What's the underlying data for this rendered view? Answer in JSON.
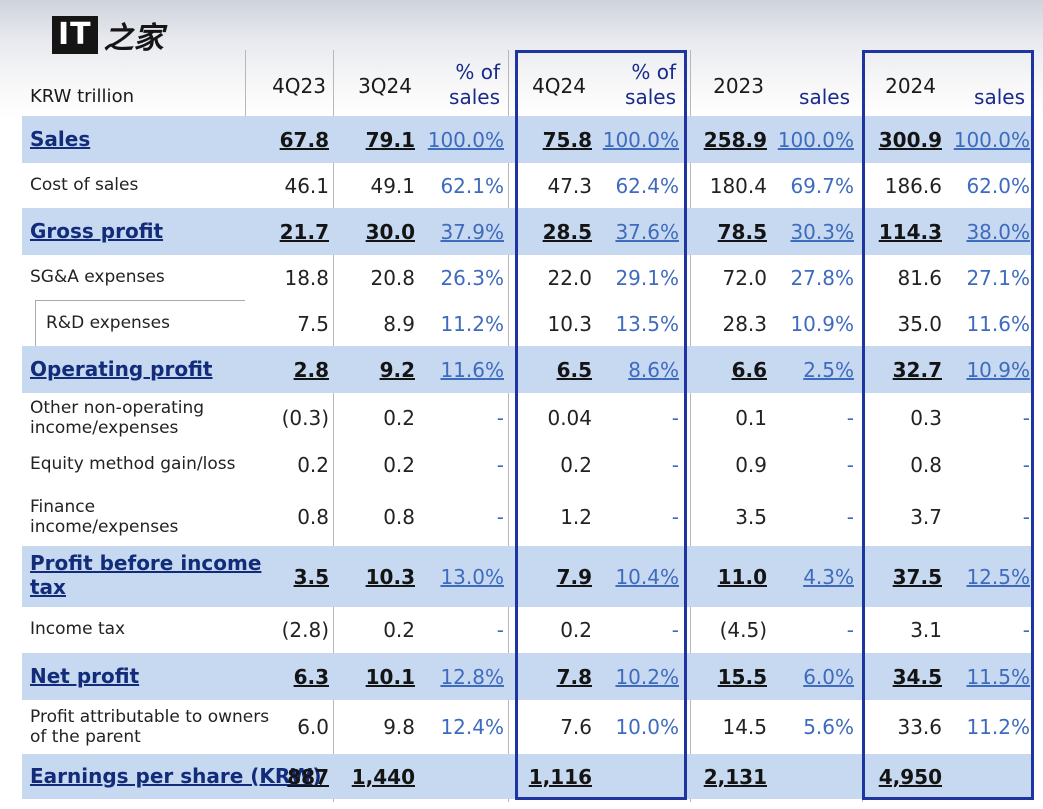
{
  "watermark": {
    "box_text": "IT",
    "script_text": "之家"
  },
  "unit_label": "KRW trillion",
  "columns": [
    {
      "label": "4Q23",
      "pct_label": ""
    },
    {
      "label": "3Q24",
      "pct_label": "% of sales"
    },
    {
      "label": "4Q24",
      "pct_label": "% of sales"
    },
    {
      "label": "2023",
      "pct_label": "sales"
    },
    {
      "label": "2024",
      "pct_label": "sales"
    }
  ],
  "header": {
    "c1": "4Q23",
    "c2": "3Q24",
    "p2a": "% of",
    "p2b": "sales",
    "c3": "4Q24",
    "p3a": "% of",
    "p3b": "sales",
    "c4": "2023",
    "p4b": "sales",
    "c5": "2024",
    "p5b": "sales"
  },
  "rows": [
    {
      "label": "Sales",
      "highlight": true,
      "v": [
        "67.8",
        "79.1",
        "100.0%",
        "75.8",
        "100.0%",
        "258.9",
        "100.0%",
        "300.9",
        "100.0%"
      ]
    },
    {
      "label": "Cost of sales",
      "highlight": false,
      "v": [
        "46.1",
        "49.1",
        "62.1%",
        "47.3",
        "62.4%",
        "180.4",
        "69.7%",
        "186.6",
        "62.0%"
      ]
    },
    {
      "label": "Gross profit",
      "highlight": true,
      "v": [
        "21.7",
        "30.0",
        "37.9%",
        "28.5",
        "37.6%",
        "78.5",
        "30.3%",
        "114.3",
        "38.0%"
      ]
    },
    {
      "label": "SG&A expenses",
      "highlight": false,
      "v": [
        "18.8",
        "20.8",
        "26.3%",
        "22.0",
        "29.1%",
        "72.0",
        "27.8%",
        "81.6",
        "27.1%"
      ]
    },
    {
      "label": "R&D expenses",
      "highlight": false,
      "indent": true,
      "v": [
        "7.5",
        "8.9",
        "11.2%",
        "10.3",
        "13.5%",
        "28.3",
        "10.9%",
        "35.0",
        "11.6%"
      ]
    },
    {
      "label": "Operating profit",
      "highlight": true,
      "v": [
        "2.8",
        "9.2",
        "11.6%",
        "6.5",
        "8.6%",
        "6.6",
        "2.5%",
        "32.7",
        "10.9%"
      ]
    },
    {
      "label_a": "Other non-operating",
      "label_b": "income/expenses",
      "highlight": false,
      "v": [
        "(0.3)",
        "0.2",
        "-",
        "0.04",
        "-",
        "0.1",
        "-",
        "0.3",
        "-"
      ]
    },
    {
      "label": "Equity method gain/loss",
      "highlight": false,
      "v": [
        "0.2",
        "0.2",
        "-",
        "0.2",
        "-",
        "0.9",
        "-",
        "0.8",
        "-"
      ]
    },
    {
      "label_a": "Finance",
      "label_b": "income/expenses",
      "highlight": false,
      "v": [
        "0.8",
        "0.8",
        "-",
        "1.2",
        "-",
        "3.5",
        "-",
        "3.7",
        "-"
      ]
    },
    {
      "label_a": "Profit before income",
      "label_b": "tax",
      "highlight": true,
      "v": [
        "3.5",
        "10.3",
        "13.0%",
        "7.9",
        "10.4%",
        "11.0",
        "4.3%",
        "37.5",
        "12.5%"
      ]
    },
    {
      "label": "Income tax",
      "highlight": false,
      "v": [
        "(2.8)",
        "0.2",
        "-",
        "0.2",
        "-",
        "(4.5)",
        "-",
        "3.1",
        "-"
      ]
    },
    {
      "label": "Net profit",
      "highlight": true,
      "v": [
        "6.3",
        "10.1",
        "12.8%",
        "7.8",
        "10.2%",
        "15.5",
        "6.0%",
        "34.5",
        "11.5%"
      ]
    },
    {
      "label_a": "Profit attributable to owners",
      "label_b": "of the parent",
      "highlight": false,
      "v": [
        "6.0",
        "9.8",
        "12.4%",
        "7.6",
        "10.0%",
        "14.5",
        "5.6%",
        "33.6",
        "11.2%"
      ]
    },
    {
      "label": "Earnings per share (KRW)",
      "highlight": true,
      "v": [
        "887",
        "1,440",
        "",
        "1,116",
        "",
        "2,131",
        "",
        "4,950",
        ""
      ]
    }
  ],
  "colors": {
    "highlight_row": "#c6d9f0",
    "frame": "#1e35a0",
    "label_blue": "#132c7a",
    "pct_blue": "#3f6bbf"
  }
}
